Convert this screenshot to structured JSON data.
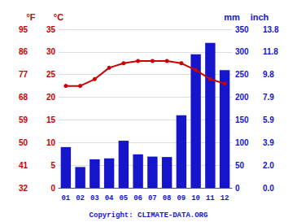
{
  "chart_data": {
    "type": "bar_line",
    "categories": [
      "01",
      "02",
      "03",
      "04",
      "05",
      "06",
      "07",
      "08",
      "09",
      "10",
      "11",
      "12"
    ],
    "series": [
      {
        "type": "bar",
        "color": "#1515cc",
        "axis": "y2",
        "values": [
          90,
          46,
          63,
          65,
          104,
          74,
          69,
          68,
          160,
          295,
          320,
          260
        ]
      },
      {
        "type": "line",
        "color": "#cc0000",
        "marker": "circle",
        "axis": "y",
        "values": [
          22.5,
          22.5,
          24.0,
          26.5,
          27.5,
          28.0,
          28.0,
          28.0,
          27.5,
          26.0,
          24.0,
          23.0
        ]
      }
    ],
    "ylabel": "°C",
    "ylim": [
      0,
      35
    ],
    "yticks": [
      0,
      5,
      10,
      15,
      20,
      25,
      30,
      35
    ],
    "y2label": "mm",
    "y2lim": [
      0,
      350
    ],
    "y2ticks": [
      0,
      50,
      100,
      150,
      200,
      250,
      300,
      350
    ],
    "y3label": "°F",
    "y3lim": [
      32,
      95
    ],
    "y3ticks": [
      32,
      41,
      50,
      59,
      68,
      77,
      86,
      95
    ],
    "y4label": "inch",
    "y4lim": [
      0,
      350
    ],
    "y4ticks": [
      {
        "value": 0,
        "label": "0.0"
      },
      {
        "value": 50,
        "label": "2.0"
      },
      {
        "value": 100,
        "label": "3.9"
      },
      {
        "value": 150,
        "label": "5.9"
      },
      {
        "value": 200,
        "label": "7.9"
      },
      {
        "value": 250,
        "label": "9.8"
      },
      {
        "value": 300,
        "label": "11.8"
      },
      {
        "value": 350,
        "label": "13.8"
      }
    ],
    "annotation": "Copyright: CLIMATE-DATA.ORG",
    "grid": true
  }
}
